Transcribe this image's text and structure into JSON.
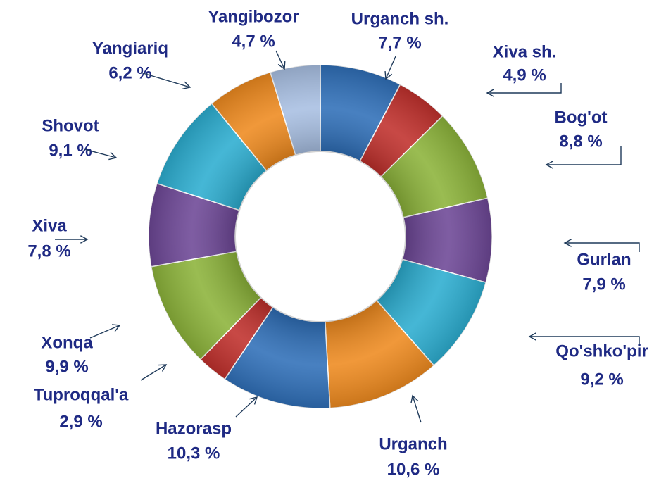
{
  "chart_data": {
    "type": "donut",
    "categories": [
      "Urganch sh.",
      "Xiva sh.",
      "Bog'ot",
      "Gurlan",
      "Qo'shko'pir",
      "Urganch",
      "Hazorasp",
      "Tuproqqal'a",
      "Xonqa",
      "Xiva",
      "Shovot",
      "Yangiariq",
      "Yangibozor"
    ],
    "values": [
      7.7,
      4.9,
      8.8,
      7.9,
      9.2,
      10.6,
      10.3,
      2.9,
      9.9,
      7.8,
      9.1,
      6.2,
      4.7
    ],
    "value_labels": [
      "7,7 %",
      "4,9 %",
      "8,8 %",
      "7,9 %",
      "9,2 %",
      "10,6 %",
      "10,3 %",
      "2,9 %",
      "9,9 %",
      "7,8 %",
      "9,1 %",
      "6,2 %",
      "4,7 %"
    ],
    "colors": [
      "#2f6fb8",
      "#c0302c",
      "#8cb33a",
      "#6d4796",
      "#2cadd0",
      "#ee8a1f",
      "#2f6fb8",
      "#c0302c",
      "#8cb33a",
      "#6d4796",
      "#2cadd0",
      "#ee8a1f",
      "#a8bfe2"
    ]
  }
}
